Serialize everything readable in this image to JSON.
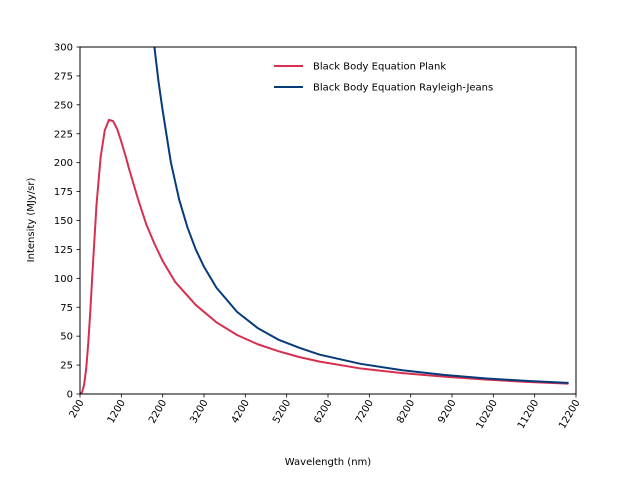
{
  "chart_data": {
    "type": "line",
    "xlabel": "Wavelength (nm)",
    "ylabel": "Intensity (MJy/sr)",
    "xlim": [
      200,
      12200
    ],
    "ylim": [
      0,
      300
    ],
    "x_ticks": [
      200,
      1200,
      2200,
      3200,
      4200,
      5200,
      6200,
      7200,
      8200,
      9200,
      10200,
      11200,
      12200
    ],
    "y_ticks": [
      0,
      25,
      50,
      75,
      100,
      125,
      150,
      175,
      200,
      225,
      250,
      275,
      300
    ],
    "x_tick_rotation_deg": 60,
    "grid": false,
    "legend_position": "top-right",
    "series": [
      {
        "name": "Black Body Equation Plank",
        "color": "#d62f4f",
        "x": [
          200,
          250,
          300,
          350,
          400,
          450,
          500,
          600,
          700,
          800,
          900,
          1000,
          1100,
          1200,
          1300,
          1400,
          1500,
          1600,
          1800,
          2000,
          2200,
          2500,
          3000,
          3500,
          4000,
          4500,
          5000,
          5500,
          6000,
          7000,
          8000,
          9000,
          10000,
          11000,
          12000
        ],
        "y": [
          0,
          1.5,
          8,
          22,
          44,
          72,
          104,
          164,
          205,
          228,
          237,
          236,
          229,
          218,
          206,
          193,
          181,
          169,
          147,
          130,
          115,
          97,
          77,
          62,
          51,
          43,
          37,
          32,
          28,
          22,
          18,
          15,
          12.5,
          10.5,
          9
        ]
      },
      {
        "name": "Black Body Equation Rayleigh-Jeans",
        "color": "#063b7a",
        "x": [
          2000,
          2100,
          2200,
          2400,
          2600,
          2800,
          3000,
          3200,
          3500,
          4000,
          4500,
          5000,
          5500,
          6000,
          7000,
          8000,
          9000,
          10000,
          11000,
          12000
        ],
        "y": [
          300,
          270,
          245,
          200,
          168,
          144,
          125,
          110,
          92,
          71,
          57,
          47,
          40,
          34,
          26,
          20.5,
          16.5,
          13.5,
          11.3,
          9.6
        ]
      }
    ]
  }
}
